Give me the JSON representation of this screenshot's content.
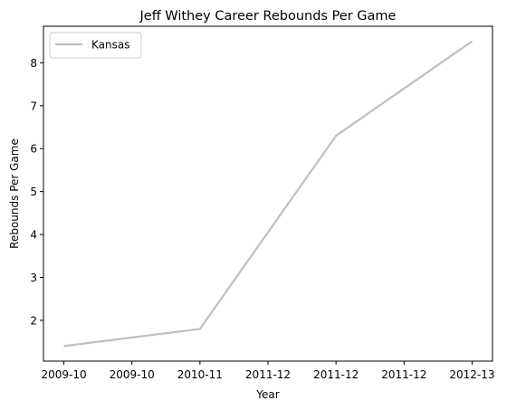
{
  "chart_data": {
    "type": "line",
    "title": "Jeff Withey Career Rebounds Per Game",
    "xlabel": "Year",
    "ylabel": "Rebounds Per Game",
    "x_tick_labels": [
      "2009-10",
      "2009-10",
      "2010-11",
      "2011-12",
      "2011-12",
      "2011-12",
      "2012-13"
    ],
    "x_tick_positions": [
      0,
      0.5,
      1,
      1.5,
      2,
      2.5,
      3
    ],
    "xlim": [
      -0.15,
      3.15
    ],
    "y_ticks": [
      2,
      3,
      4,
      5,
      6,
      7,
      8
    ],
    "ylim": [
      1.05,
      8.85
    ],
    "grid": false,
    "legend_position": "upper-left",
    "series": [
      {
        "name": "Kansas",
        "color": "#bfbfbf",
        "x": [
          0,
          1,
          2,
          3
        ],
        "values": [
          1.4,
          1.8,
          6.3,
          8.5
        ]
      }
    ]
  }
}
